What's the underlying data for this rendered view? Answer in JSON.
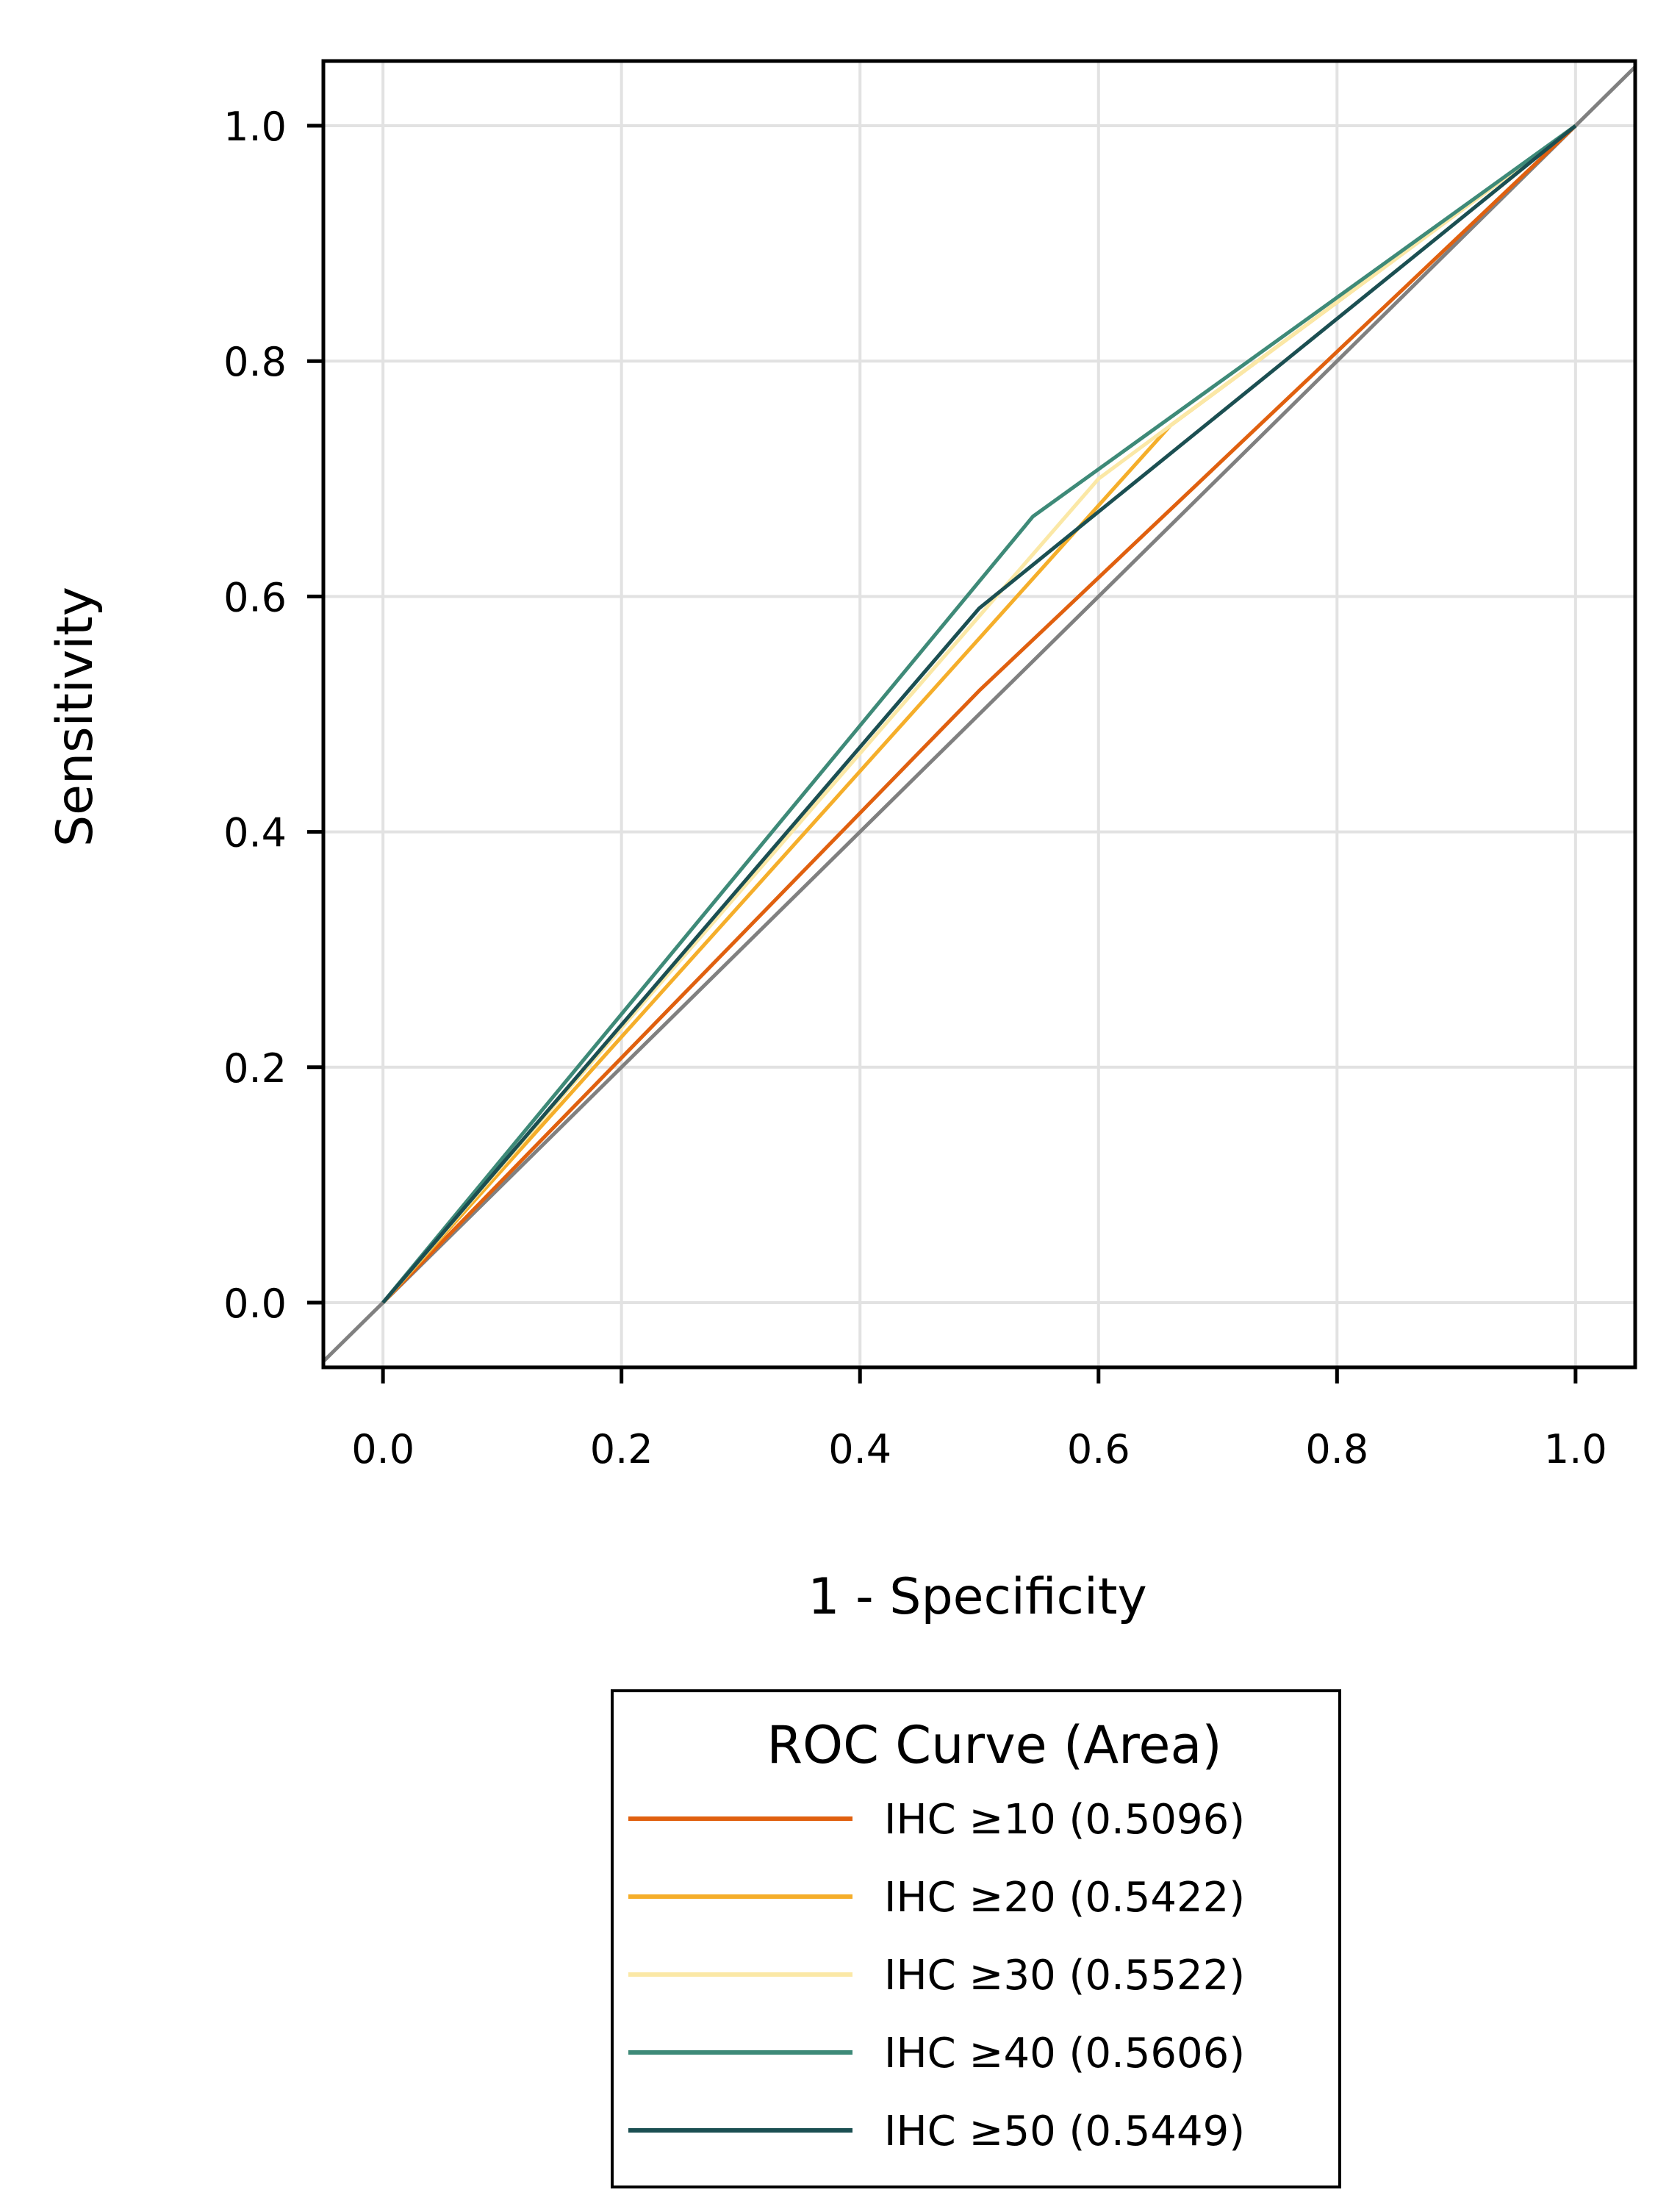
{
  "chart_data": {
    "type": "line",
    "title": "",
    "xlabel": "1 - Specificity",
    "ylabel": "Sensitivity",
    "xlim": [
      -0.05,
      1.05
    ],
    "ylim": [
      -0.055,
      1.055
    ],
    "grid": true,
    "xticks": [
      0.0,
      0.2,
      0.4,
      0.6,
      0.8,
      1.0
    ],
    "yticks": [
      0.0,
      0.2,
      0.4,
      0.6,
      0.8,
      1.0
    ],
    "xtick_labels": [
      "0.0",
      "0.2",
      "0.4",
      "0.6",
      "0.8",
      "1.0"
    ],
    "ytick_labels": [
      "0.0",
      "0.2",
      "0.4",
      "0.6",
      "0.8",
      "1.0"
    ],
    "reference_line": {
      "name": "chance",
      "color": "#808080",
      "x": [
        -0.05,
        1.05
      ],
      "y": [
        -0.05,
        1.05
      ]
    },
    "legend": {
      "title": "ROC Curve (Area)",
      "placement": "below"
    },
    "series": [
      {
        "name": "IHC  ≥10   (0.5096)",
        "color": "#E0600F",
        "x": [
          0.0,
          0.5,
          1.0
        ],
        "y": [
          0.0,
          0.52,
          1.0
        ]
      },
      {
        "name": "IHC  ≥20   (0.5422)",
        "color": "#F5AE2A",
        "x": [
          0.0,
          0.66,
          1.0
        ],
        "y": [
          0.0,
          0.745,
          1.0
        ]
      },
      {
        "name": "IHC  ≥30   (0.5522)",
        "color": "#FBE8A6",
        "x": [
          0.0,
          0.6,
          1.0
        ],
        "y": [
          0.0,
          0.7,
          1.0
        ]
      },
      {
        "name": "IHC  ≥40   (0.5606)",
        "color": "#3E8A78",
        "x": [
          0.0,
          0.545,
          1.0
        ],
        "y": [
          0.0,
          0.668,
          1.0
        ]
      },
      {
        "name": "IHC  ≥50   (0.5449)",
        "color": "#1B4F52",
        "x": [
          0.0,
          0.5,
          1.0
        ],
        "y": [
          0.0,
          0.59,
          1.0
        ]
      }
    ]
  }
}
